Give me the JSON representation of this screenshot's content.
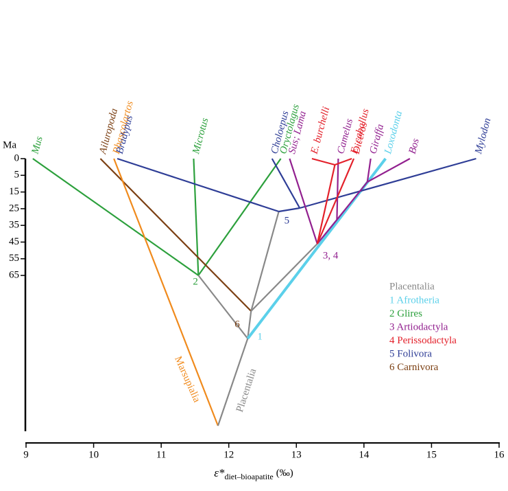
{
  "chart_data": {
    "type": "phylogeny",
    "y_title": "Ma",
    "x_title": {
      "symbol": "ε*",
      "subscript": "diet–bioapatite",
      "unit": "(‰)"
    },
    "xlim": [
      9,
      16
    ],
    "xticks": [
      9,
      10,
      11,
      12,
      13,
      14,
      15,
      16
    ],
    "yticks": [
      0,
      5,
      15,
      25,
      35,
      45,
      55,
      65
    ],
    "tips": [
      {
        "name": "Mus",
        "x": 9.1,
        "color": "#2ca03c"
      },
      {
        "name": "Ailuropoda",
        "x": 10.1,
        "color": "#7b3f12"
      },
      {
        "name": "Phascolartos",
        "x": 10.3,
        "color": "#f08a1c"
      },
      {
        "name": "Bradypus",
        "x": 10.35,
        "color": "#2e3d96"
      },
      {
        "name": "Microtus",
        "x": 11.48,
        "color": "#2ca03c"
      },
      {
        "name": "Choloepus",
        "x": 12.64,
        "color": "#2e3d96"
      },
      {
        "name": "Oryctolagus",
        "x": 12.77,
        "color": "#2ca03c"
      },
      {
        "name": "Sus; Lama",
        "x": 12.9,
        "color": "#92208f"
      },
      {
        "name": "E. burchelli",
        "x": 13.23,
        "color": "#e3202a"
      },
      {
        "name": "Camelus",
        "x": 13.62,
        "color": "#92208f"
      },
      {
        "name": "E. caballus",
        "x": 13.82,
        "color": "#e3202a"
      },
      {
        "name": "Diceros",
        "x": 13.85,
        "color": "#e3202a"
      },
      {
        "name": "Giraffa",
        "x": 14.1,
        "color": "#92208f"
      },
      {
        "name": "Loxodonta",
        "x": 14.32,
        "color": "#5bd0ea"
      },
      {
        "name": "Bos",
        "x": 14.68,
        "color": "#92208f"
      },
      {
        "name": "Mylodon",
        "x": 15.66,
        "color": "#2e3d96"
      }
    ],
    "nodes": [
      {
        "x": 11.84
      },
      {
        "x": 12.28,
        "label": "1",
        "color": "#5bd0ea"
      },
      {
        "x": 12.33,
        "label": "6",
        "color": "#7b3f12"
      },
      {
        "x": 11.55,
        "label": "2",
        "color": "#2ca03c"
      },
      {
        "x": 12.74,
        "label": "5",
        "color": "#2e3d96"
      },
      {
        "x": 13.31,
        "label": "3, 4",
        "color": "#92208f"
      },
      {
        "x": 13.05
      },
      {
        "x": 13.57
      },
      {
        "x": 14.05
      },
      {
        "x": 13.6
      }
    ],
    "branch_labels": [
      {
        "text": "Placentalia",
        "color": "#888888"
      },
      {
        "text": "Marsupialia",
        "color": "#f08a1c"
      }
    ],
    "legend": {
      "title": "Placentalia",
      "title_color": "#888888",
      "items": [
        {
          "name": "1 Afrotheria",
          "color": "#5bd0ea"
        },
        {
          "name": "2 Glires",
          "color": "#2ca03c"
        },
        {
          "name": "3 Artiodactyla",
          "color": "#92208f"
        },
        {
          "name": "4 Perissodactyla",
          "color": "#e3202a"
        },
        {
          "name": "5 Folivora",
          "color": "#2e3d96"
        },
        {
          "name": "6 Carnivora",
          "color": "#7b3f12"
        }
      ]
    }
  }
}
